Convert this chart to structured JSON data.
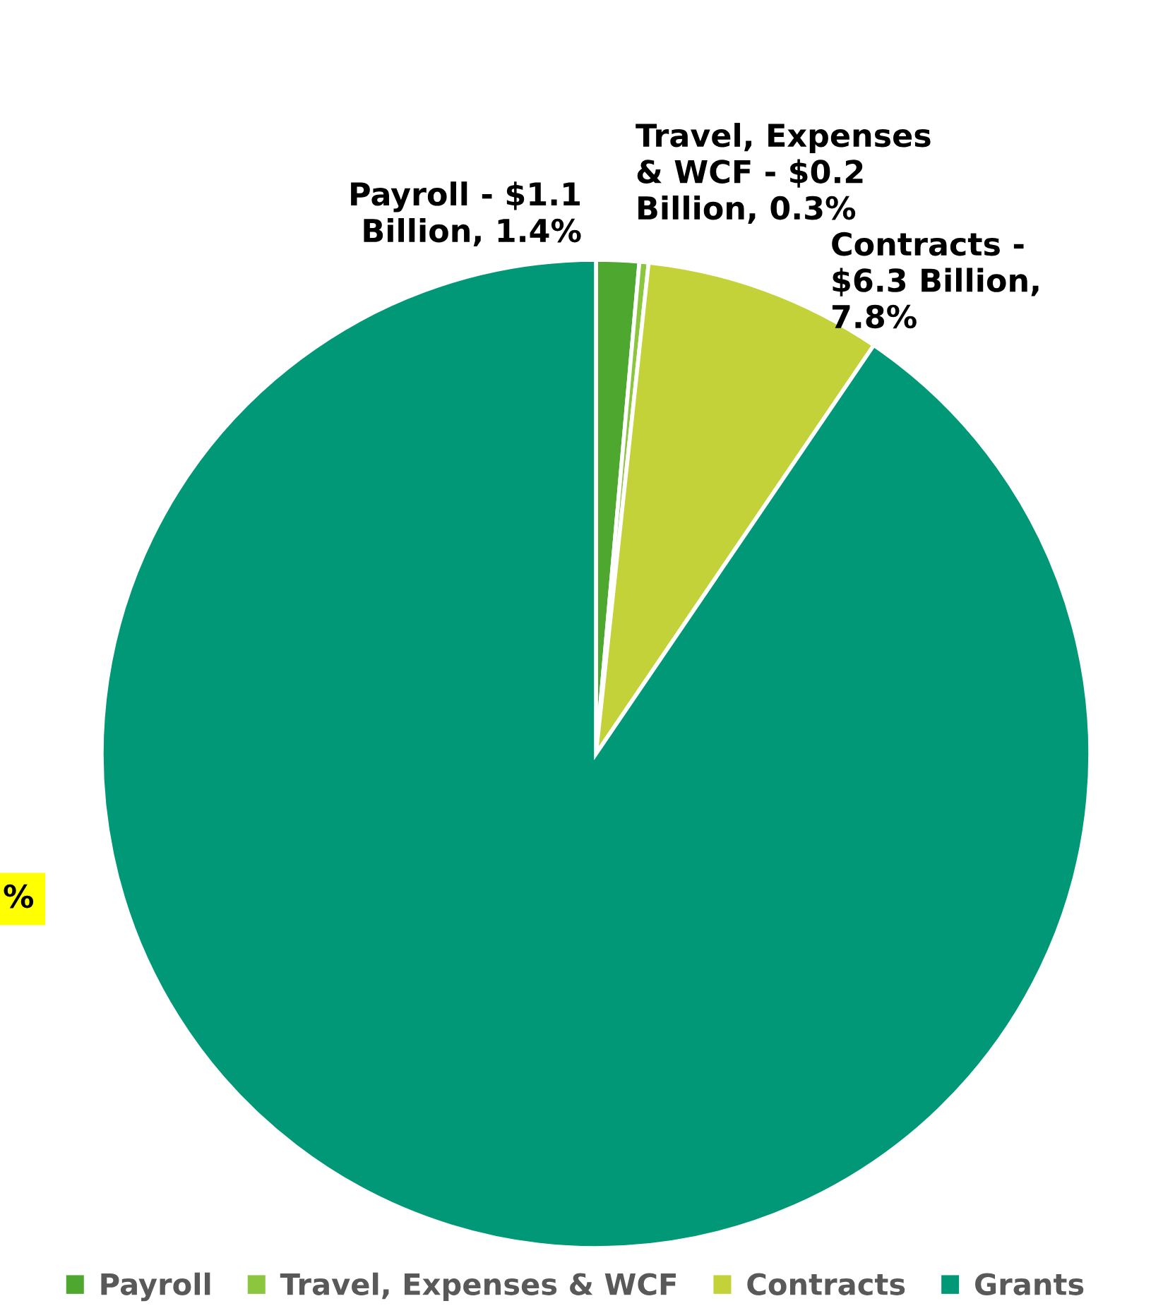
{
  "chart_data": {
    "type": "pie",
    "categories": [
      "Payroll",
      "Travel, Expenses & WCF",
      "Contracts",
      "Grants"
    ],
    "values": [
      1.4,
      0.3,
      7.8,
      90.5
    ],
    "colors": [
      "#4ea72e",
      "#8cc63f",
      "#c4d23a",
      "#009877"
    ],
    "value_labels": [
      "Payroll - $1.1\nBillion, 1.4%",
      "Travel, Expenses\n& WCF - $0.2\nBillion, 0.3%",
      "Contracts -\n$6.3 Billion,\n7.8%",
      "%"
    ],
    "legend": "bottom"
  }
}
